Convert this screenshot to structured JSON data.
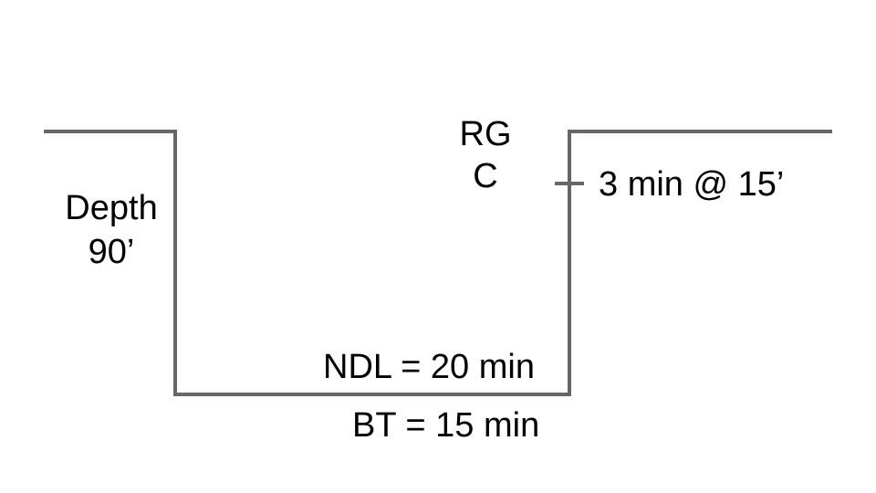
{
  "diagram": {
    "depth_label": "Depth",
    "depth_value": "90’",
    "rg_label": "RG",
    "rg_value": "C",
    "safety_stop": "3 min @ 15’",
    "ndl": "NDL = 20 min",
    "bottom_time": "BT = 15 min"
  },
  "colors": {
    "line": "#666666",
    "text": "#000000",
    "background": "#ffffff"
  }
}
